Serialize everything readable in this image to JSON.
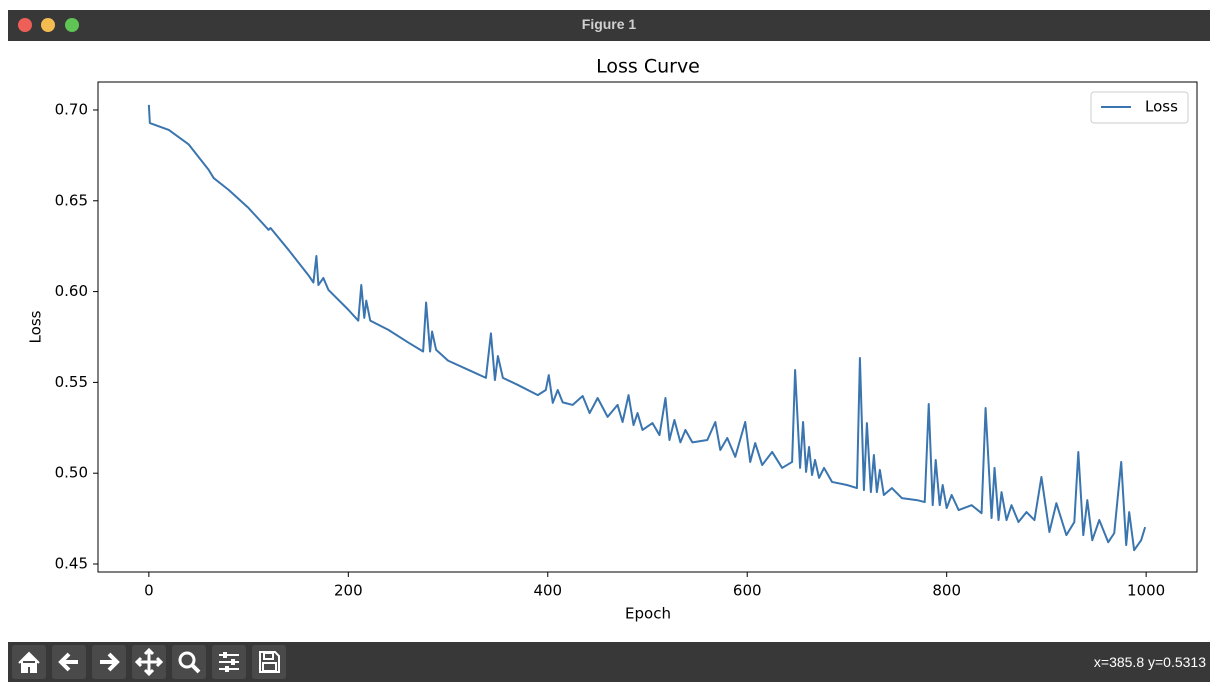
{
  "window": {
    "title": "Figure 1",
    "status": "x=385.8 y=0.5313"
  },
  "chart_data": {
    "type": "line",
    "title": "Loss Curve",
    "x_label": "Epoch",
    "y_label": "Loss",
    "x": [
      0,
      1,
      20,
      40,
      60,
      65,
      80,
      100,
      120,
      122,
      140,
      160,
      165,
      168,
      170,
      175,
      180,
      200,
      210,
      213,
      216,
      218,
      222,
      240,
      260,
      275,
      278,
      282,
      284,
      288,
      300,
      320,
      338,
      343,
      347,
      350,
      355,
      370,
      390,
      398,
      401,
      405,
      410,
      415,
      425,
      435,
      442,
      450,
      460,
      470,
      475,
      481,
      486,
      490,
      495,
      505,
      512,
      518,
      522,
      527,
      533,
      538,
      545,
      560,
      568,
      573,
      580,
      588,
      598,
      603,
      608,
      615,
      625,
      635,
      645,
      648,
      653,
      656,
      659,
      662,
      665,
      668,
      672,
      677,
      685,
      700,
      710,
      713,
      717,
      720,
      724,
      727,
      730,
      733,
      737,
      745,
      755,
      770,
      778,
      782,
      786,
      789,
      793,
      796,
      800,
      805,
      812,
      825,
      835,
      839,
      845,
      848,
      852,
      855,
      860,
      865,
      872,
      880,
      888,
      895,
      903,
      910,
      920,
      928,
      932,
      937,
      941,
      946,
      953,
      962,
      968,
      975,
      980,
      983,
      988,
      995,
      999
    ],
    "series": [
      {
        "name": "Loss",
        "color": "#3b75af",
        "values": [
          0.7028,
          0.6928,
          0.689,
          0.681,
          0.667,
          0.6625,
          0.656,
          0.646,
          0.634,
          0.635,
          0.623,
          0.609,
          0.605,
          0.6196,
          0.6036,
          0.6075,
          0.601,
          0.59,
          0.584,
          0.6036,
          0.5855,
          0.595,
          0.584,
          0.579,
          0.572,
          0.567,
          0.594,
          0.567,
          0.578,
          0.568,
          0.562,
          0.557,
          0.5525,
          0.577,
          0.5513,
          0.5645,
          0.5525,
          0.5486,
          0.543,
          0.5458,
          0.554,
          0.5387,
          0.5458,
          0.539,
          0.5376,
          0.5425,
          0.5331,
          0.5414,
          0.531,
          0.5376,
          0.5282,
          0.543,
          0.5265,
          0.5331,
          0.5238,
          0.5276,
          0.521,
          0.5414,
          0.5183,
          0.5293,
          0.517,
          0.5238,
          0.517,
          0.5183,
          0.5282,
          0.5128,
          0.5194,
          0.509,
          0.5282,
          0.5062,
          0.5166,
          0.5045,
          0.5117,
          0.5029,
          0.5062,
          0.5568,
          0.5029,
          0.5282,
          0.5007,
          0.5144,
          0.499,
          0.5073,
          0.4974,
          0.5029,
          0.4952,
          0.4935,
          0.4918,
          0.5634,
          0.4907,
          0.5276,
          0.4896,
          0.51,
          0.4896,
          0.5018,
          0.488,
          0.4918,
          0.4863,
          0.4852,
          0.4841,
          0.5381,
          0.4824,
          0.5073,
          0.4824,
          0.4935,
          0.4808,
          0.488,
          0.4797,
          0.4824,
          0.478,
          0.5359,
          0.4753,
          0.5029,
          0.4742,
          0.4896,
          0.4742,
          0.4824,
          0.4731,
          0.4786,
          0.4742,
          0.4979,
          0.4676,
          0.4835,
          0.4659,
          0.4731,
          0.5117,
          0.4659,
          0.4852,
          0.4631,
          0.4742,
          0.462,
          0.467,
          0.5062,
          0.4604,
          0.4786,
          0.4576,
          0.4631,
          0.4703
        ]
      }
    ],
    "xlim": [
      -51,
      1051
    ],
    "ylim": [
      0.4456,
      0.7154
    ],
    "xticks": [
      0,
      200,
      400,
      600,
      800,
      1000
    ],
    "yticks": [
      0.45,
      {
        "value": 0.5,
        "label": "0.50"
      },
      0.55,
      {
        "value": 0.6,
        "label": "0.60"
      },
      0.65,
      {
        "value": 0.7,
        "label": "0.70"
      }
    ],
    "legend": "upper right",
    "grid": false
  }
}
